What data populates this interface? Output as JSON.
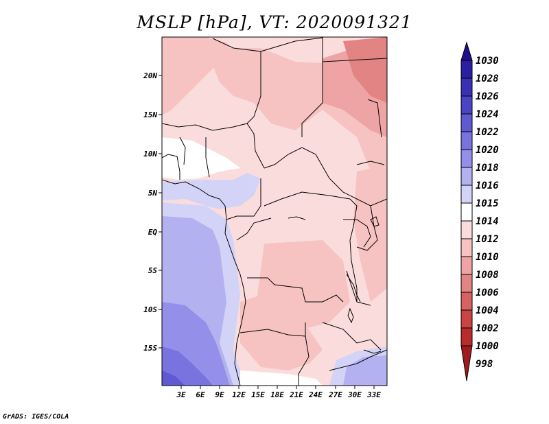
{
  "title": "MSLP [hPa], VT: 2020091321",
  "credit": "GrADS: IGES/COLA",
  "axes": {
    "lat_labels": [
      "20N",
      "15N",
      "10N",
      "5N",
      "EQ",
      "5S",
      "10S",
      "15S"
    ],
    "lon_labels": [
      "3E",
      "6E",
      "9E",
      "12E",
      "15E",
      "18E",
      "21E",
      "24E",
      "27E",
      "30E",
      "33E"
    ]
  },
  "colorbar": {
    "labels": [
      "1030",
      "1028",
      "1026",
      "1024",
      "1022",
      "1020",
      "1018",
      "1016",
      "1015",
      "1014",
      "1012",
      "1010",
      "1008",
      "1006",
      "1004",
      "1002",
      "1000",
      "998"
    ],
    "colors": {
      "c1030": "#1e0f8c",
      "c1028": "#2a1ea3",
      "c1026": "#3a30b5",
      "c1024": "#4b44c4",
      "c1022": "#5f5ad2",
      "c1020": "#7873de",
      "c1018": "#948fe8",
      "c1016": "#b4b1f0",
      "c1015": "#d3d3f7",
      "c1014": "#ffffff",
      "c1012": "#fbdcdc",
      "c1010": "#f6c2c2",
      "c1008": "#eea4a4",
      "c1006": "#e28484",
      "c1004": "#d66262",
      "c1002": "#c94444",
      "c1000": "#b82c2c",
      "c998": "#a01c1c"
    }
  }
}
